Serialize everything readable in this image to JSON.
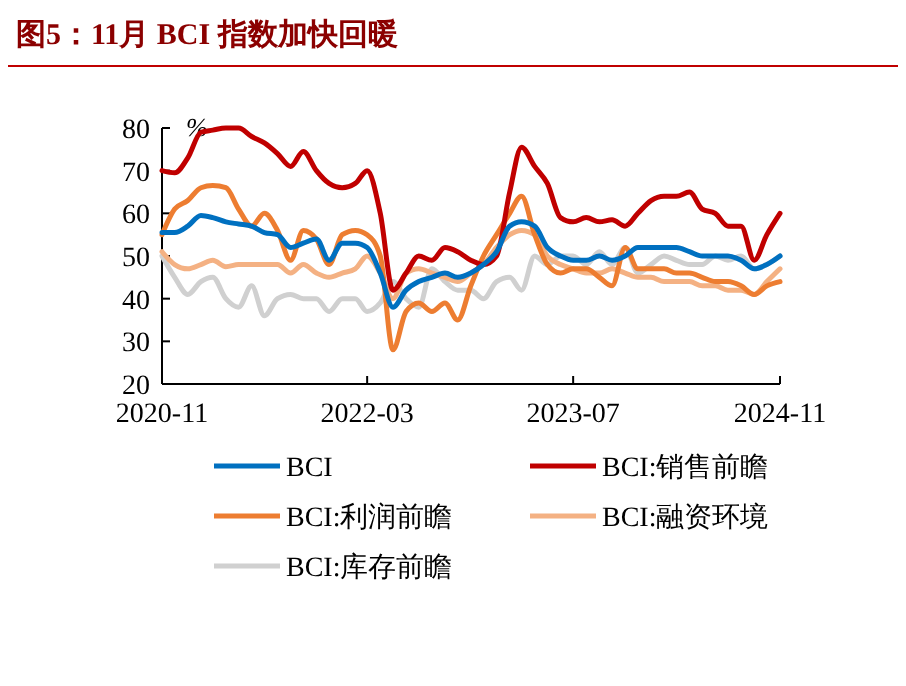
{
  "chart_data": {
    "type": "line",
    "title": "图5：11月 BCI 指数加快回暖",
    "ylabel": "%",
    "x": [
      "2020-11",
      "2020-12",
      "2021-01",
      "2021-02",
      "2021-03",
      "2021-04",
      "2021-05",
      "2021-06",
      "2021-07",
      "2021-08",
      "2021-09",
      "2021-10",
      "2021-11",
      "2021-12",
      "2022-01",
      "2022-02",
      "2022-03",
      "2022-04",
      "2022-05",
      "2022-06",
      "2022-07",
      "2022-08",
      "2022-09",
      "2022-10",
      "2022-11",
      "2022-12",
      "2023-01",
      "2023-02",
      "2023-03",
      "2023-04",
      "2023-05",
      "2023-06",
      "2023-07",
      "2023-08",
      "2023-09",
      "2023-10",
      "2023-11",
      "2023-12",
      "2024-01",
      "2024-02",
      "2024-03",
      "2024-04",
      "2024-05",
      "2024-06",
      "2024-07",
      "2024-08",
      "2024-09",
      "2024-10",
      "2024-11"
    ],
    "series": [
      {
        "name": "BCI",
        "color": "#0070c0",
        "values": [
          55.5,
          55.5,
          57,
          59.5,
          59,
          58,
          57.5,
          57,
          55.5,
          55,
          52,
          53,
          54,
          49,
          53,
          53,
          52,
          46,
          38,
          42,
          44,
          45,
          46,
          45,
          46,
          48,
          51,
          57,
          58,
          57,
          52,
          50,
          49,
          49,
          50,
          49,
          50,
          52,
          52,
          52,
          52,
          51,
          50,
          50,
          50,
          49,
          47,
          48,
          50
        ]
      },
      {
        "name": "BCI:销售前瞻",
        "color": "#c00000",
        "values": [
          70,
          69.5,
          73,
          79,
          79.5,
          80,
          80,
          78,
          76.5,
          74,
          71,
          74.5,
          70,
          67,
          66,
          67,
          70,
          60,
          42,
          46,
          50,
          49,
          52,
          51,
          49,
          48,
          50,
          65,
          75.5,
          71,
          67,
          59,
          58,
          59,
          58,
          58.5,
          57,
          60,
          63,
          64,
          64,
          65,
          61,
          60,
          57,
          57,
          49,
          55,
          60
        ]
      },
      {
        "name": "BCI:利润前瞻",
        "color": "#ed7d31",
        "values": [
          55,
          61,
          63,
          66,
          66.5,
          66,
          61,
          57,
          60,
          56,
          49,
          56,
          54,
          48,
          55,
          56,
          55,
          50,
          28,
          37,
          39,
          37,
          39,
          35,
          43,
          50,
          55,
          60,
          64,
          55,
          48,
          46,
          47,
          47,
          45,
          43,
          52,
          47,
          47,
          47,
          46,
          46,
          45,
          44,
          44,
          43,
          41,
          43,
          44
        ]
      },
      {
        "name": "BCI:融资环境",
        "color": "#f4b183",
        "values": [
          51,
          48,
          47,
          48,
          49,
          47.5,
          48,
          48,
          48,
          48,
          46,
          48,
          46,
          45,
          46,
          47,
          50,
          46,
          40,
          46,
          47,
          46,
          45,
          44,
          46,
          48,
          52,
          55,
          56,
          55,
          50,
          48,
          47,
          46,
          46,
          47,
          46,
          45,
          45,
          44,
          44,
          44,
          43,
          43,
          42,
          42,
          41,
          44,
          47
        ]
      },
      {
        "name": "BCI:库存前瞻",
        "color": "#d0d0d0",
        "values": [
          50,
          45,
          41,
          44,
          45,
          40,
          38,
          43,
          36,
          40,
          41,
          40,
          40,
          37,
          40,
          40,
          37,
          39,
          44,
          40,
          38,
          47,
          44,
          42,
          42,
          40,
          44,
          45,
          42,
          50,
          48,
          50,
          50,
          48,
          51,
          48,
          52,
          46,
          48,
          50,
          49,
          48,
          48,
          50,
          49,
          50,
          47,
          48,
          50
        ]
      }
    ],
    "xlim": [
      "2020-11",
      "2024-11"
    ],
    "xticks": [
      {
        "value": "2020-11",
        "label": "2020-11"
      },
      {
        "value": "2022-03",
        "label": "2022-03"
      },
      {
        "value": "2023-07",
        "label": "2023-07"
      },
      {
        "value": "2024-11",
        "label": "2024-11"
      }
    ],
    "ylim": [
      20,
      80
    ],
    "yticks": [
      20,
      30,
      40,
      50,
      60,
      70,
      80
    ],
    "grid": false,
    "legend": "bottom",
    "line_style": "solid"
  }
}
